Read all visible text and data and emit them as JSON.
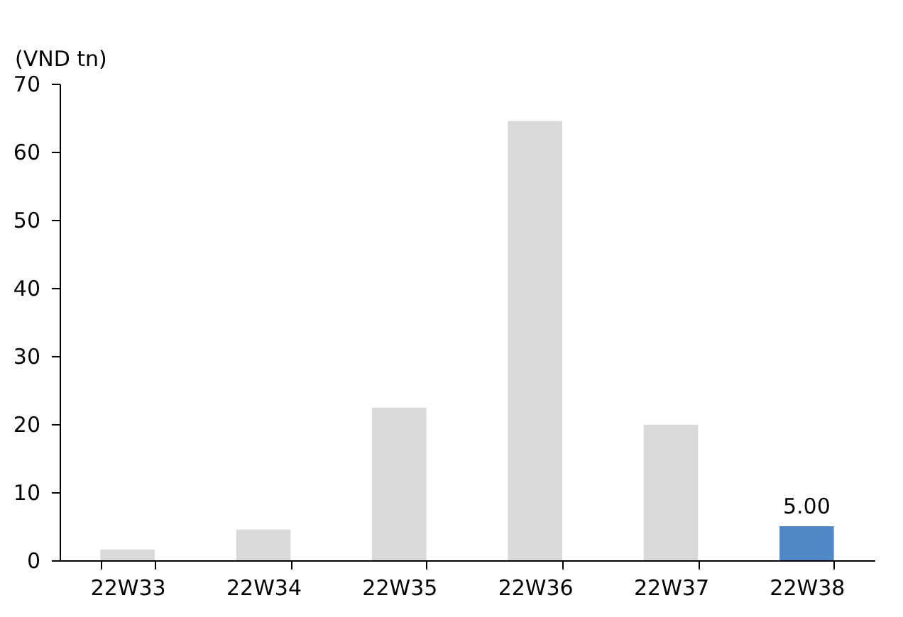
{
  "chart_data": {
    "type": "bar",
    "ylabel": "(VND tn)",
    "categories": [
      "22W33",
      "22W34",
      "22W35",
      "22W36",
      "22W37",
      "22W38"
    ],
    "values": [
      1.6,
      4.5,
      22.4,
      64.5,
      19.9,
      5.0
    ],
    "colors": [
      "#d9d9d9",
      "#d9d9d9",
      "#d9d9d9",
      "#d9d9d9",
      "#d9d9d9",
      "#4f88c6"
    ],
    "value_labels": [
      null,
      null,
      null,
      null,
      null,
      "5.00"
    ],
    "ylim": [
      0,
      70
    ],
    "yticks": [
      0,
      10,
      20,
      30,
      40,
      50,
      60,
      70
    ],
    "grid": false
  }
}
